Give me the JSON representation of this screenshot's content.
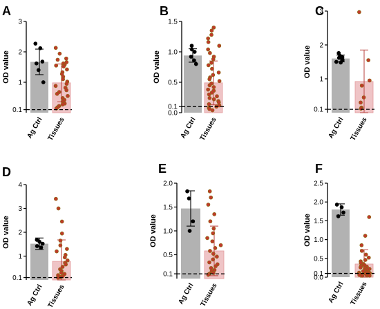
{
  "chart_data": [
    {
      "panel": "A",
      "type": "bar",
      "ylabel": "OD value",
      "ylim": [
        0,
        3
      ],
      "yticks": [
        0.1,
        1,
        2,
        3
      ],
      "reference_line": 0.1,
      "categories": [
        "Ag Ctrl",
        "Tissues"
      ],
      "bars": [
        {
          "category": "Ag Ctrl",
          "mean": 1.67,
          "sd": 0.42,
          "points": [
            2.27,
            2.12,
            1.68,
            1.62,
            1.4,
            1.0
          ]
        },
        {
          "category": "Tissues",
          "mean": 0.98,
          "sd": 0.62,
          "points": [
            2.13,
            1.94,
            1.78,
            1.74,
            1.66,
            1.62,
            1.58,
            1.55,
            1.52,
            1.42,
            1.33,
            1.27,
            1.18,
            1.1,
            1.02,
            0.95,
            0.88,
            0.82,
            0.74,
            0.68,
            0.62,
            0.55,
            0.48,
            0.42,
            0.36,
            0.3,
            0.27,
            0.22,
            0.18,
            0.14
          ]
        }
      ]
    },
    {
      "panel": "B",
      "type": "bar",
      "ylabel": "OD value",
      "ylim": [
        0,
        1.5
      ],
      "yticks": [
        0.0,
        0.1,
        0.5,
        1.0,
        1.5
      ],
      "reference_line": 0.1,
      "categories": [
        "Ag Ctrl",
        "Tissues"
      ],
      "bars": [
        {
          "category": "Ag Ctrl",
          "mean": 0.94,
          "sd": 0.11,
          "points": [
            1.1,
            1.04,
            1.0,
            0.92,
            0.86,
            0.8
          ]
        },
        {
          "category": "Tissues",
          "mean": 0.49,
          "sd": 0.36,
          "points": [
            1.4,
            1.35,
            1.28,
            1.22,
            1.16,
            1.1,
            1.04,
            0.98,
            0.92,
            0.88,
            0.82,
            0.78,
            0.72,
            0.66,
            0.62,
            0.58,
            0.55,
            0.52,
            0.48,
            0.45,
            0.42,
            0.38,
            0.36,
            0.33,
            0.3,
            0.27,
            0.24,
            0.22,
            0.19,
            0.17,
            0.14,
            0.12,
            0.1,
            0.08,
            0.06,
            0.04
          ]
        }
      ]
    },
    {
      "panel": "C",
      "type": "bar",
      "ylabel": "OD value",
      "ylim": [
        0,
        3
      ],
      "yticks": [
        0.1,
        1,
        2,
        3
      ],
      "reference_line": 0.1,
      "categories": [
        "Ag Ctrl",
        "Tissues"
      ],
      "bars": [
        {
          "category": "Ag Ctrl",
          "mean": 1.6,
          "sd": 0.1,
          "points": [
            1.76,
            1.68,
            1.64,
            1.62,
            1.58,
            1.55,
            1.5,
            1.48
          ]
        },
        {
          "category": "Tissues",
          "mean": 0.92,
          "sd": 0.93,
          "points": [
            2.97,
            1.55,
            0.95,
            0.8,
            0.45,
            0.3,
            0.15,
            0.12
          ]
        }
      ]
    },
    {
      "panel": "D",
      "type": "bar",
      "ylabel": "OD value",
      "ylim": [
        0,
        4
      ],
      "yticks": [
        0.1,
        1,
        2,
        3,
        4
      ],
      "reference_line": 0.1,
      "categories": [
        "Ag Ctrl",
        "Tissues"
      ],
      "bars": [
        {
          "category": "Ag Ctrl",
          "mean": 1.52,
          "sd": 0.24,
          "points": [
            1.68,
            1.6,
            1.52,
            1.42,
            1.36
          ]
        },
        {
          "category": "Tissues",
          "mean": 0.78,
          "sd": 0.9,
          "points": [
            3.4,
            3.0,
            2.45,
            1.95,
            1.65,
            1.45,
            1.3,
            1.2,
            1.05,
            0.95,
            0.82,
            0.72,
            0.65,
            0.55,
            0.45,
            0.38,
            0.3,
            0.25,
            0.2,
            0.15,
            0.12,
            0.1
          ]
        }
      ]
    },
    {
      "panel": "E",
      "type": "bar",
      "ylabel": "OD value",
      "ylim": [
        0,
        2
      ],
      "yticks": [
        0.1,
        0.5,
        1.0,
        1.5,
        2.0
      ],
      "reference_line": 0.1,
      "categories": [
        "Ag Ctrl",
        "Tissues"
      ],
      "bars": [
        {
          "category": "Ag Ctrl",
          "mean": 1.47,
          "sd": 0.37,
          "points": [
            1.83,
            1.68,
            1.2,
            1.0
          ]
        },
        {
          "category": "Tissues",
          "mean": 0.58,
          "sd": 0.52,
          "points": [
            1.83,
            1.7,
            1.55,
            1.35,
            1.2,
            1.05,
            0.95,
            0.85,
            0.78,
            0.7,
            0.64,
            0.58,
            0.52,
            0.46,
            0.4,
            0.34,
            0.3,
            0.26,
            0.22,
            0.18,
            0.15,
            0.12,
            0.1,
            0.08
          ]
        }
      ]
    },
    {
      "panel": "F",
      "type": "bar",
      "ylabel": "OD value",
      "ylim": [
        0,
        2.5
      ],
      "yticks": [
        0.0,
        0.1,
        0.5,
        1.0,
        1.5,
        2.0,
        2.5
      ],
      "reference_line": 0.1,
      "categories": [
        "Ag Ctrl",
        "Tissues"
      ],
      "bars": [
        {
          "category": "Ag Ctrl",
          "mean": 1.8,
          "sd": 0.15,
          "points": [
            1.93,
            1.86,
            1.72,
            1.62
          ]
        },
        {
          "category": "Tissues",
          "mean": 0.35,
          "sd": 0.38,
          "points": [
            1.6,
            1.1,
            0.85,
            0.7,
            0.6,
            0.52,
            0.46,
            0.42,
            0.38,
            0.35,
            0.32,
            0.3,
            0.28,
            0.26,
            0.24,
            0.22,
            0.2,
            0.18,
            0.16,
            0.14,
            0.13,
            0.12,
            0.11,
            0.1,
            0.09,
            0.08,
            0.07,
            0.06,
            0.05,
            0.05,
            0.04,
            0.04
          ]
        }
      ]
    }
  ],
  "colors": {
    "ctrl_bar": "#b2b2b2",
    "tissue_bar": "#efc4c6",
    "tissue_bar_edge": "#e39a9c",
    "ctrl_point": "#000000",
    "tissue_point_fill": "#c0392b",
    "tissue_point_edge": "#8a6a10",
    "tissue_error": "#c0504d",
    "background": "#ffffff"
  }
}
